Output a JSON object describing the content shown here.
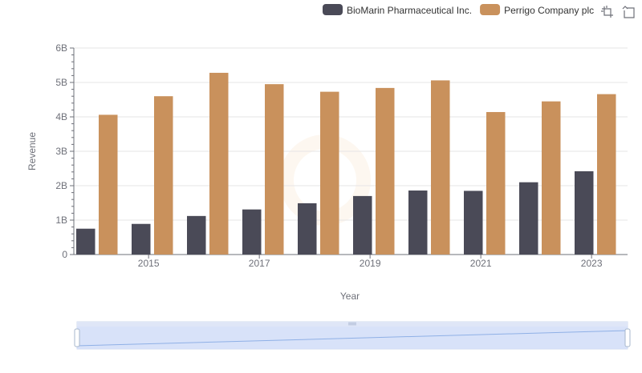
{
  "chart_data": {
    "type": "bar",
    "xlabel": "Year",
    "ylabel": "Revenue",
    "ylim": [
      0,
      6000000000
    ],
    "y_ticks": [
      {
        "value": 0,
        "label": "0"
      },
      {
        "value": 1000000000,
        "label": "1B"
      },
      {
        "value": 2000000000,
        "label": "2B"
      },
      {
        "value": 3000000000,
        "label": "3B"
      },
      {
        "value": 4000000000,
        "label": "4B"
      },
      {
        "value": 5000000000,
        "label": "5B"
      },
      {
        "value": 6000000000,
        "label": "6B"
      }
    ],
    "categories": [
      "2014",
      "2015",
      "2016",
      "2017",
      "2018",
      "2019",
      "2020",
      "2021",
      "2022",
      "2023"
    ],
    "x_tick_labels": [
      "2015",
      "2017",
      "2019",
      "2021",
      "2023"
    ],
    "grid": true,
    "legend_position": "top-right",
    "series": [
      {
        "name": "BioMarin Pharmaceutical Inc.",
        "color": "#4a4a57",
        "values": [
          751000000,
          890000000,
          1120000000,
          1310000000,
          1490000000,
          1700000000,
          1860000000,
          1850000000,
          2100000000,
          2420000000
        ]
      },
      {
        "name": "Perrigo Company plc",
        "color": "#c9915c",
        "values": [
          4060000000,
          4600000000,
          5280000000,
          4950000000,
          4730000000,
          4840000000,
          5060000000,
          4140000000,
          4450000000,
          4660000000
        ]
      }
    ]
  },
  "toolbar": {
    "zoom_icon": "zoom-select-icon",
    "restore_icon": "restore-icon"
  },
  "data_zoom": {
    "range_start": 0,
    "range_end": 1
  }
}
